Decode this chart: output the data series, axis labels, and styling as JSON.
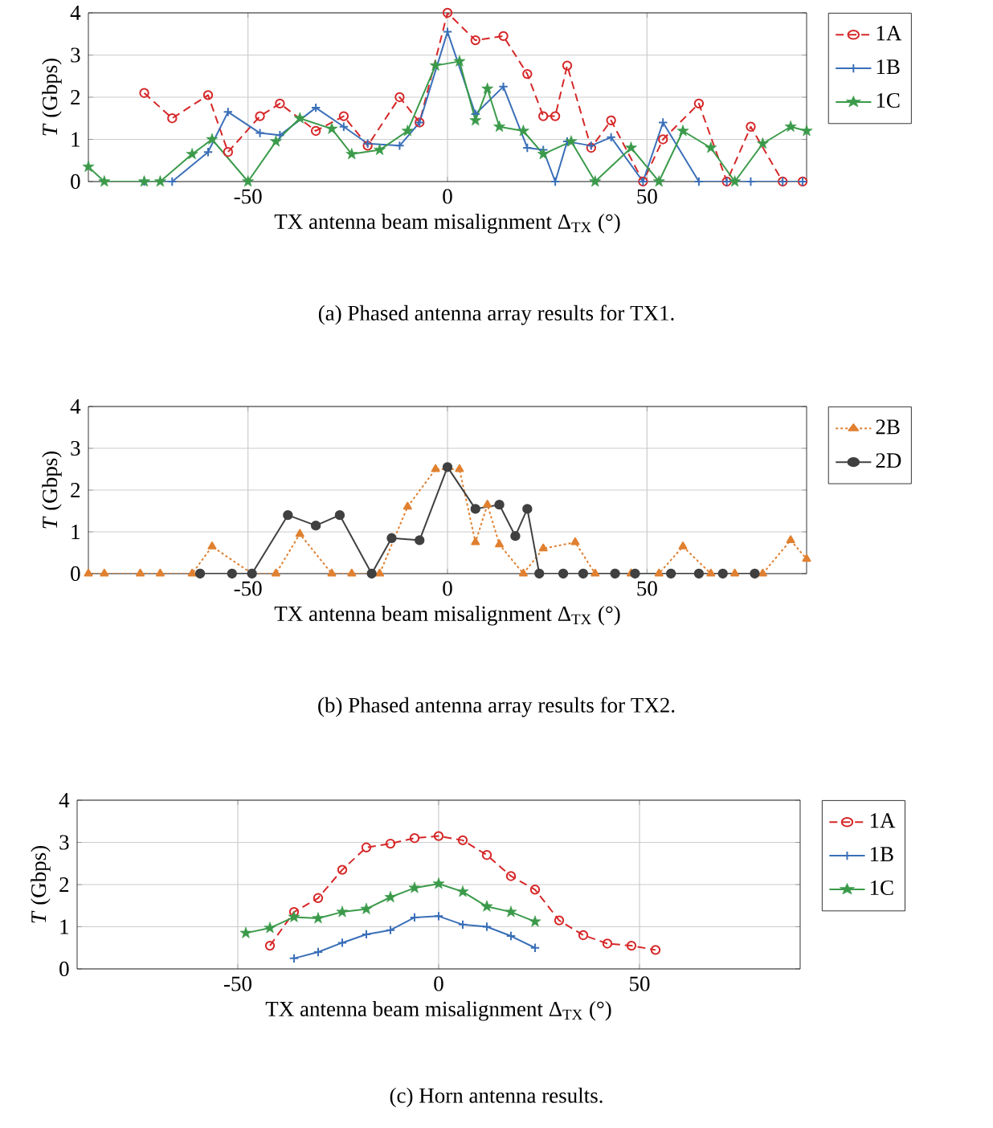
{
  "chart_data": [
    {
      "type": "line",
      "xlabel": "TX antenna beam misalignment Δ$_{TX}$ (°)",
      "ylabel": "*T* (Gbps)",
      "annotations": [
        "(a) Phased antenna array results for TX1."
      ],
      "xlim": [
        -90,
        90
      ],
      "ylim": [
        0,
        4
      ],
      "xticks": [
        -50,
        0,
        50
      ],
      "yticks": [
        0,
        1,
        2,
        3,
        4
      ],
      "grid": true,
      "legend": "right",
      "series": [
        {
          "name": "1A",
          "color": "#d62728",
          "marker": "circle",
          "line_style": "dashed",
          "x": [
            -76,
            -69,
            -60,
            -55,
            -47,
            -42,
            -33,
            -26,
            -20,
            -12,
            -7,
            0,
            7,
            14,
            20,
            24,
            27,
            30,
            36,
            41,
            49,
            54,
            63,
            70,
            76,
            84,
            89
          ],
          "values": [
            2.1,
            1.5,
            2.05,
            0.7,
            1.55,
            1.85,
            1.2,
            1.55,
            0.85,
            2.0,
            1.4,
            4.0,
            3.35,
            3.45,
            2.55,
            1.55,
            1.55,
            2.75,
            0.8,
            1.45,
            0,
            1.0,
            1.85,
            0,
            1.3,
            0,
            0
          ]
        },
        {
          "name": "1B",
          "color": "#3a6fb8",
          "marker": "cross",
          "line_style": "solid",
          "x": [
            -76,
            -69,
            -60,
            -55,
            -47,
            -42,
            -33,
            -26,
            -20,
            -12,
            -7,
            0,
            7,
            14,
            20,
            24,
            27,
            30,
            36,
            41,
            49,
            54,
            63,
            70,
            76,
            84,
            89
          ],
          "values": [
            0,
            0,
            0.7,
            1.65,
            1.15,
            1.1,
            1.75,
            1.3,
            0.9,
            0.85,
            1.4,
            3.55,
            1.6,
            2.25,
            0.8,
            0.75,
            0,
            0.95,
            0.85,
            1.05,
            0,
            1.4,
            0,
            0,
            0,
            0,
            0
          ]
        },
        {
          "name": "1C",
          "color": "#3a9a4a",
          "marker": "star",
          "line_style": "solid",
          "x": [
            -90,
            -86,
            -76,
            -72,
            -64,
            -59,
            -50,
            -43,
            -37,
            -29,
            -24,
            -17,
            -10,
            -3,
            3,
            7,
            10,
            13,
            19,
            24,
            31,
            37,
            46,
            53,
            59,
            66,
            72,
            79,
            86,
            90
          ],
          "values": [
            0.35,
            0,
            0,
            0,
            0.65,
            1.0,
            0,
            0.95,
            1.5,
            1.25,
            0.65,
            0.75,
            1.2,
            2.75,
            2.85,
            1.45,
            2.2,
            1.3,
            1.2,
            0.65,
            0.95,
            0,
            0.8,
            0,
            1.2,
            0.8,
            0,
            0.9,
            1.3,
            1.2
          ]
        }
      ]
    },
    {
      "type": "line",
      "xlabel": "TX antenna beam misalignment Δ$_{TX}$ (°)",
      "ylabel": "*T* (Gbps)",
      "annotations": [
        "(b) Phased antenna array results for TX2."
      ],
      "xlim": [
        -90,
        90
      ],
      "ylim": [
        0,
        4
      ],
      "xticks": [
        -50,
        0,
        50
      ],
      "yticks": [
        0,
        1,
        2,
        3,
        4
      ],
      "grid": true,
      "legend": "right",
      "series": [
        {
          "name": "2B",
          "color": "#e08030",
          "marker": "triangle",
          "line_style": "dotted",
          "x": [
            -90,
            -86,
            -77,
            -72,
            -64,
            -59,
            -49,
            -43,
            -37,
            -29,
            -24,
            -17,
            -10,
            -3,
            3,
            7,
            10,
            13,
            19,
            24,
            32,
            37,
            46,
            53,
            59,
            66,
            72,
            79,
            86,
            90
          ],
          "values": [
            0,
            0,
            0,
            0,
            0,
            0.65,
            0,
            0,
            0.95,
            0,
            0,
            0,
            1.6,
            2.5,
            2.5,
            0.75,
            1.65,
            0.7,
            0,
            0.6,
            0.75,
            0,
            0,
            0,
            0.65,
            0,
            0,
            0,
            0.8,
            0.35
          ]
        },
        {
          "name": "2D",
          "color": "#404040",
          "marker": "circle",
          "line_style": "solid",
          "x": [
            -62,
            -54,
            -49,
            -40,
            -33,
            -27,
            -19,
            -14,
            -7,
            0,
            7,
            13,
            17,
            20,
            23,
            29,
            34,
            42,
            47,
            56,
            63,
            69,
            77
          ],
          "values": [
            0,
            0,
            0,
            1.4,
            1.15,
            1.4,
            0,
            0.85,
            0.8,
            2.55,
            1.55,
            1.65,
            0.9,
            1.55,
            0,
            0,
            0,
            0,
            0,
            0,
            0,
            0,
            0
          ]
        }
      ]
    },
    {
      "type": "line",
      "xlabel": "TX antenna beam misalignment Δ$_{TX}$ (°)",
      "ylabel": "*T* (Gbps)",
      "annotations": [
        "(c) Horn antenna results."
      ],
      "xlim": [
        -90,
        90
      ],
      "ylim": [
        0,
        4
      ],
      "xticks": [
        -50,
        0,
        50
      ],
      "yticks": [
        0,
        1,
        2,
        3,
        4
      ],
      "grid": true,
      "legend": "right",
      "series": [
        {
          "name": "1A",
          "color": "#d62728",
          "marker": "circle",
          "line_style": "dashed",
          "x": [
            -42,
            -36,
            -30,
            -24,
            -18,
            -12,
            -6,
            0,
            6,
            12,
            18,
            24,
            30,
            36,
            42,
            48,
            54
          ],
          "values": [
            0.55,
            1.35,
            1.68,
            2.35,
            2.88,
            2.97,
            3.1,
            3.15,
            3.05,
            2.7,
            2.2,
            1.88,
            1.15,
            0.8,
            0.6,
            0.55,
            0.45
          ]
        },
        {
          "name": "1B",
          "color": "#3a6fb8",
          "marker": "cross",
          "line_style": "solid",
          "x": [
            -36,
            -30,
            -24,
            -18,
            -12,
            -6,
            0,
            6,
            12,
            18,
            24
          ],
          "values": [
            0.25,
            0.4,
            0.62,
            0.82,
            0.92,
            1.22,
            1.25,
            1.05,
            1.0,
            0.78,
            0.5
          ]
        },
        {
          "name": "1C",
          "color": "#3a9a4a",
          "marker": "star",
          "line_style": "solid",
          "x": [
            -48,
            -42,
            -36,
            -30,
            -24,
            -18,
            -12,
            -6,
            0,
            6,
            12,
            18,
            24
          ],
          "values": [
            0.85,
            0.97,
            1.23,
            1.2,
            1.35,
            1.42,
            1.7,
            1.92,
            2.02,
            1.83,
            1.48,
            1.35,
            1.12
          ]
        }
      ]
    }
  ]
}
